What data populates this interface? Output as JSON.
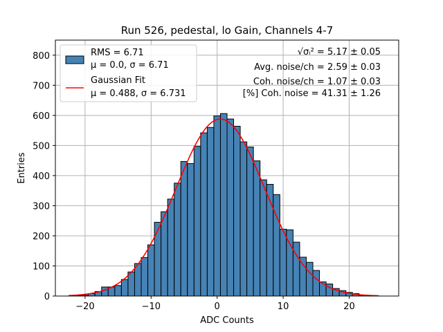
{
  "chart_data": {
    "type": "bar",
    "title": "Run 526, pedestal, lo Gain, Channels 4-7",
    "xlabel": "ADC Counts",
    "ylabel": "Entries",
    "xlim": [
      -24.5,
      27.5
    ],
    "ylim": [
      0,
      850
    ],
    "xticks": [
      -20,
      -10,
      0,
      10,
      20
    ],
    "xtick_labels": [
      "−20",
      "−10",
      "0",
      "10",
      "20"
    ],
    "yticks": [
      0,
      100,
      200,
      300,
      400,
      500,
      600,
      700,
      800
    ],
    "grid": true,
    "bin_width": 1,
    "bins": [
      {
        "x": -21,
        "v": 2
      },
      {
        "x": -20,
        "v": 3
      },
      {
        "x": -19,
        "v": 8
      },
      {
        "x": -18,
        "v": 15
      },
      {
        "x": -17,
        "v": 30
      },
      {
        "x": -16,
        "v": 30
      },
      {
        "x": -15,
        "v": 35
      },
      {
        "x": -14,
        "v": 55
      },
      {
        "x": -13,
        "v": 80
      },
      {
        "x": -12,
        "v": 108
      },
      {
        "x": -11,
        "v": 128
      },
      {
        "x": -10,
        "v": 170
      },
      {
        "x": -9,
        "v": 245
      },
      {
        "x": -8,
        "v": 280
      },
      {
        "x": -7,
        "v": 322
      },
      {
        "x": -6,
        "v": 375
      },
      {
        "x": -5,
        "v": 447
      },
      {
        "x": -4,
        "v": 440
      },
      {
        "x": -3,
        "v": 497
      },
      {
        "x": -2,
        "v": 542
      },
      {
        "x": -1,
        "v": 560
      },
      {
        "x": 0,
        "v": 598
      },
      {
        "x": 1,
        "v": 606
      },
      {
        "x": 2,
        "v": 588
      },
      {
        "x": 3,
        "v": 564
      },
      {
        "x": 4,
        "v": 512
      },
      {
        "x": 5,
        "v": 495
      },
      {
        "x": 6,
        "v": 449
      },
      {
        "x": 7,
        "v": 386
      },
      {
        "x": 8,
        "v": 371
      },
      {
        "x": 9,
        "v": 337
      },
      {
        "x": 10,
        "v": 222
      },
      {
        "x": 11,
        "v": 220
      },
      {
        "x": 12,
        "v": 179
      },
      {
        "x": 13,
        "v": 129
      },
      {
        "x": 14,
        "v": 112
      },
      {
        "x": 15,
        "v": 85
      },
      {
        "x": 16,
        "v": 47
      },
      {
        "x": 17,
        "v": 40
      },
      {
        "x": 18,
        "v": 25
      },
      {
        "x": 19,
        "v": 18
      },
      {
        "x": 20,
        "v": 12
      },
      {
        "x": 21,
        "v": 8
      },
      {
        "x": 22,
        "v": 3
      }
    ],
    "fit": {
      "mu": 0.488,
      "sigma": 6.731,
      "amplitude": 588,
      "x_range": [
        -22.5,
        24.5
      ]
    },
    "colors": {
      "bar": "#4682b4",
      "bar_edge": "#000000",
      "fit": "#ff0000",
      "grid": "#b0b0b0"
    },
    "legend": {
      "placement": "upper-left",
      "entries": [
        {
          "kind": "patch",
          "line1": "RMS = 6.71",
          "line2": "μ = 0.0, σ = 6.71"
        },
        {
          "kind": "line",
          "line1": "Gaussian Fit",
          "line2": "μ = 0.488, σ = 6.731"
        }
      ]
    },
    "annotations": {
      "placement": "upper-right",
      "lines": [
        "√σᵢ² = 5.17 ± 0.05",
        "Avg. noise/ch = 2.59 ± 0.03",
        "Coh. noise/ch = 1.07 ± 0.03",
        "[%] Coh. noise = 41.31 ± 1.26"
      ]
    }
  }
}
